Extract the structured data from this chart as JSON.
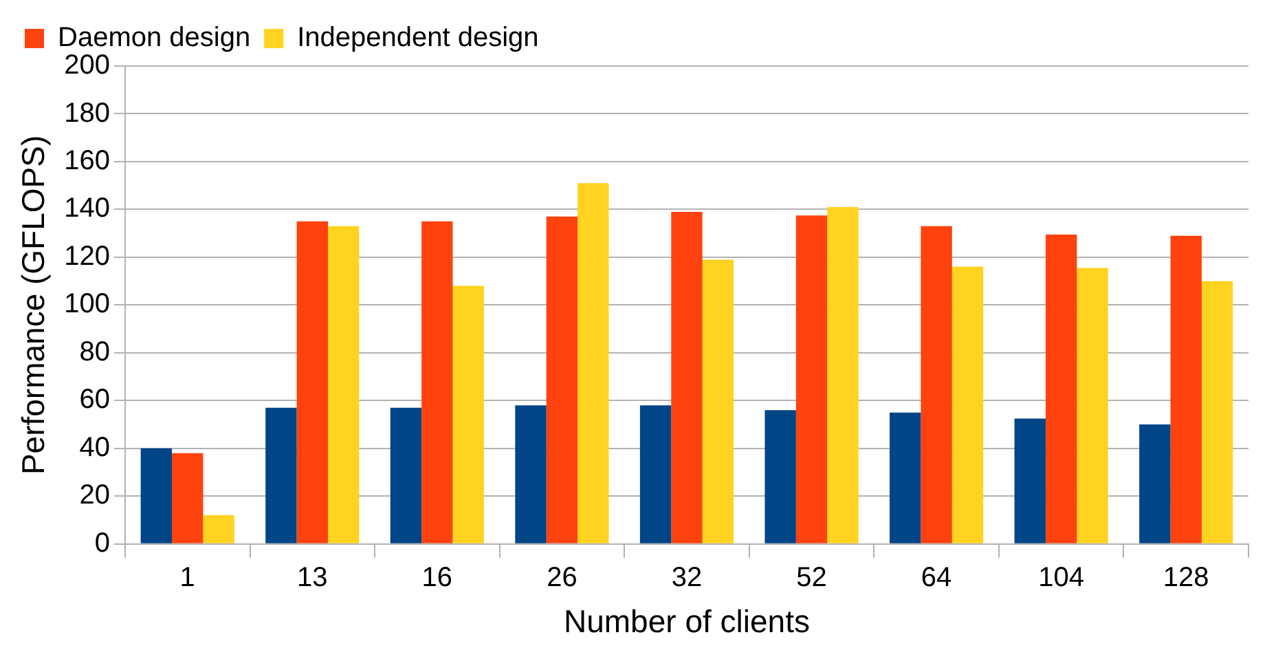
{
  "chart_data": {
    "type": "bar",
    "xlabel": "Number of clients",
    "ylabel": "Performance (GFLOPS)",
    "categories": [
      "1",
      "13",
      "16",
      "26",
      "32",
      "52",
      "64",
      "104",
      "128"
    ],
    "series": [
      {
        "color": "#004586",
        "values": [
          40,
          57,
          57,
          58,
          58,
          56,
          55,
          52.5,
          50
        ]
      },
      {
        "name": "Daemon design",
        "color": "#ff420e",
        "values": [
          38,
          135,
          135,
          137,
          139,
          137.5,
          133,
          129.5,
          129
        ]
      },
      {
        "name": "Independent design",
        "color": "#ffd320",
        "values": [
          12,
          133,
          108,
          151,
          119,
          141,
          116,
          115.5,
          110
        ]
      }
    ],
    "ylim": [
      0,
      200
    ],
    "yticks": [
      0,
      20,
      40,
      60,
      80,
      100,
      120,
      140,
      160,
      180,
      200
    ],
    "grid": "y",
    "legend": "top left"
  }
}
